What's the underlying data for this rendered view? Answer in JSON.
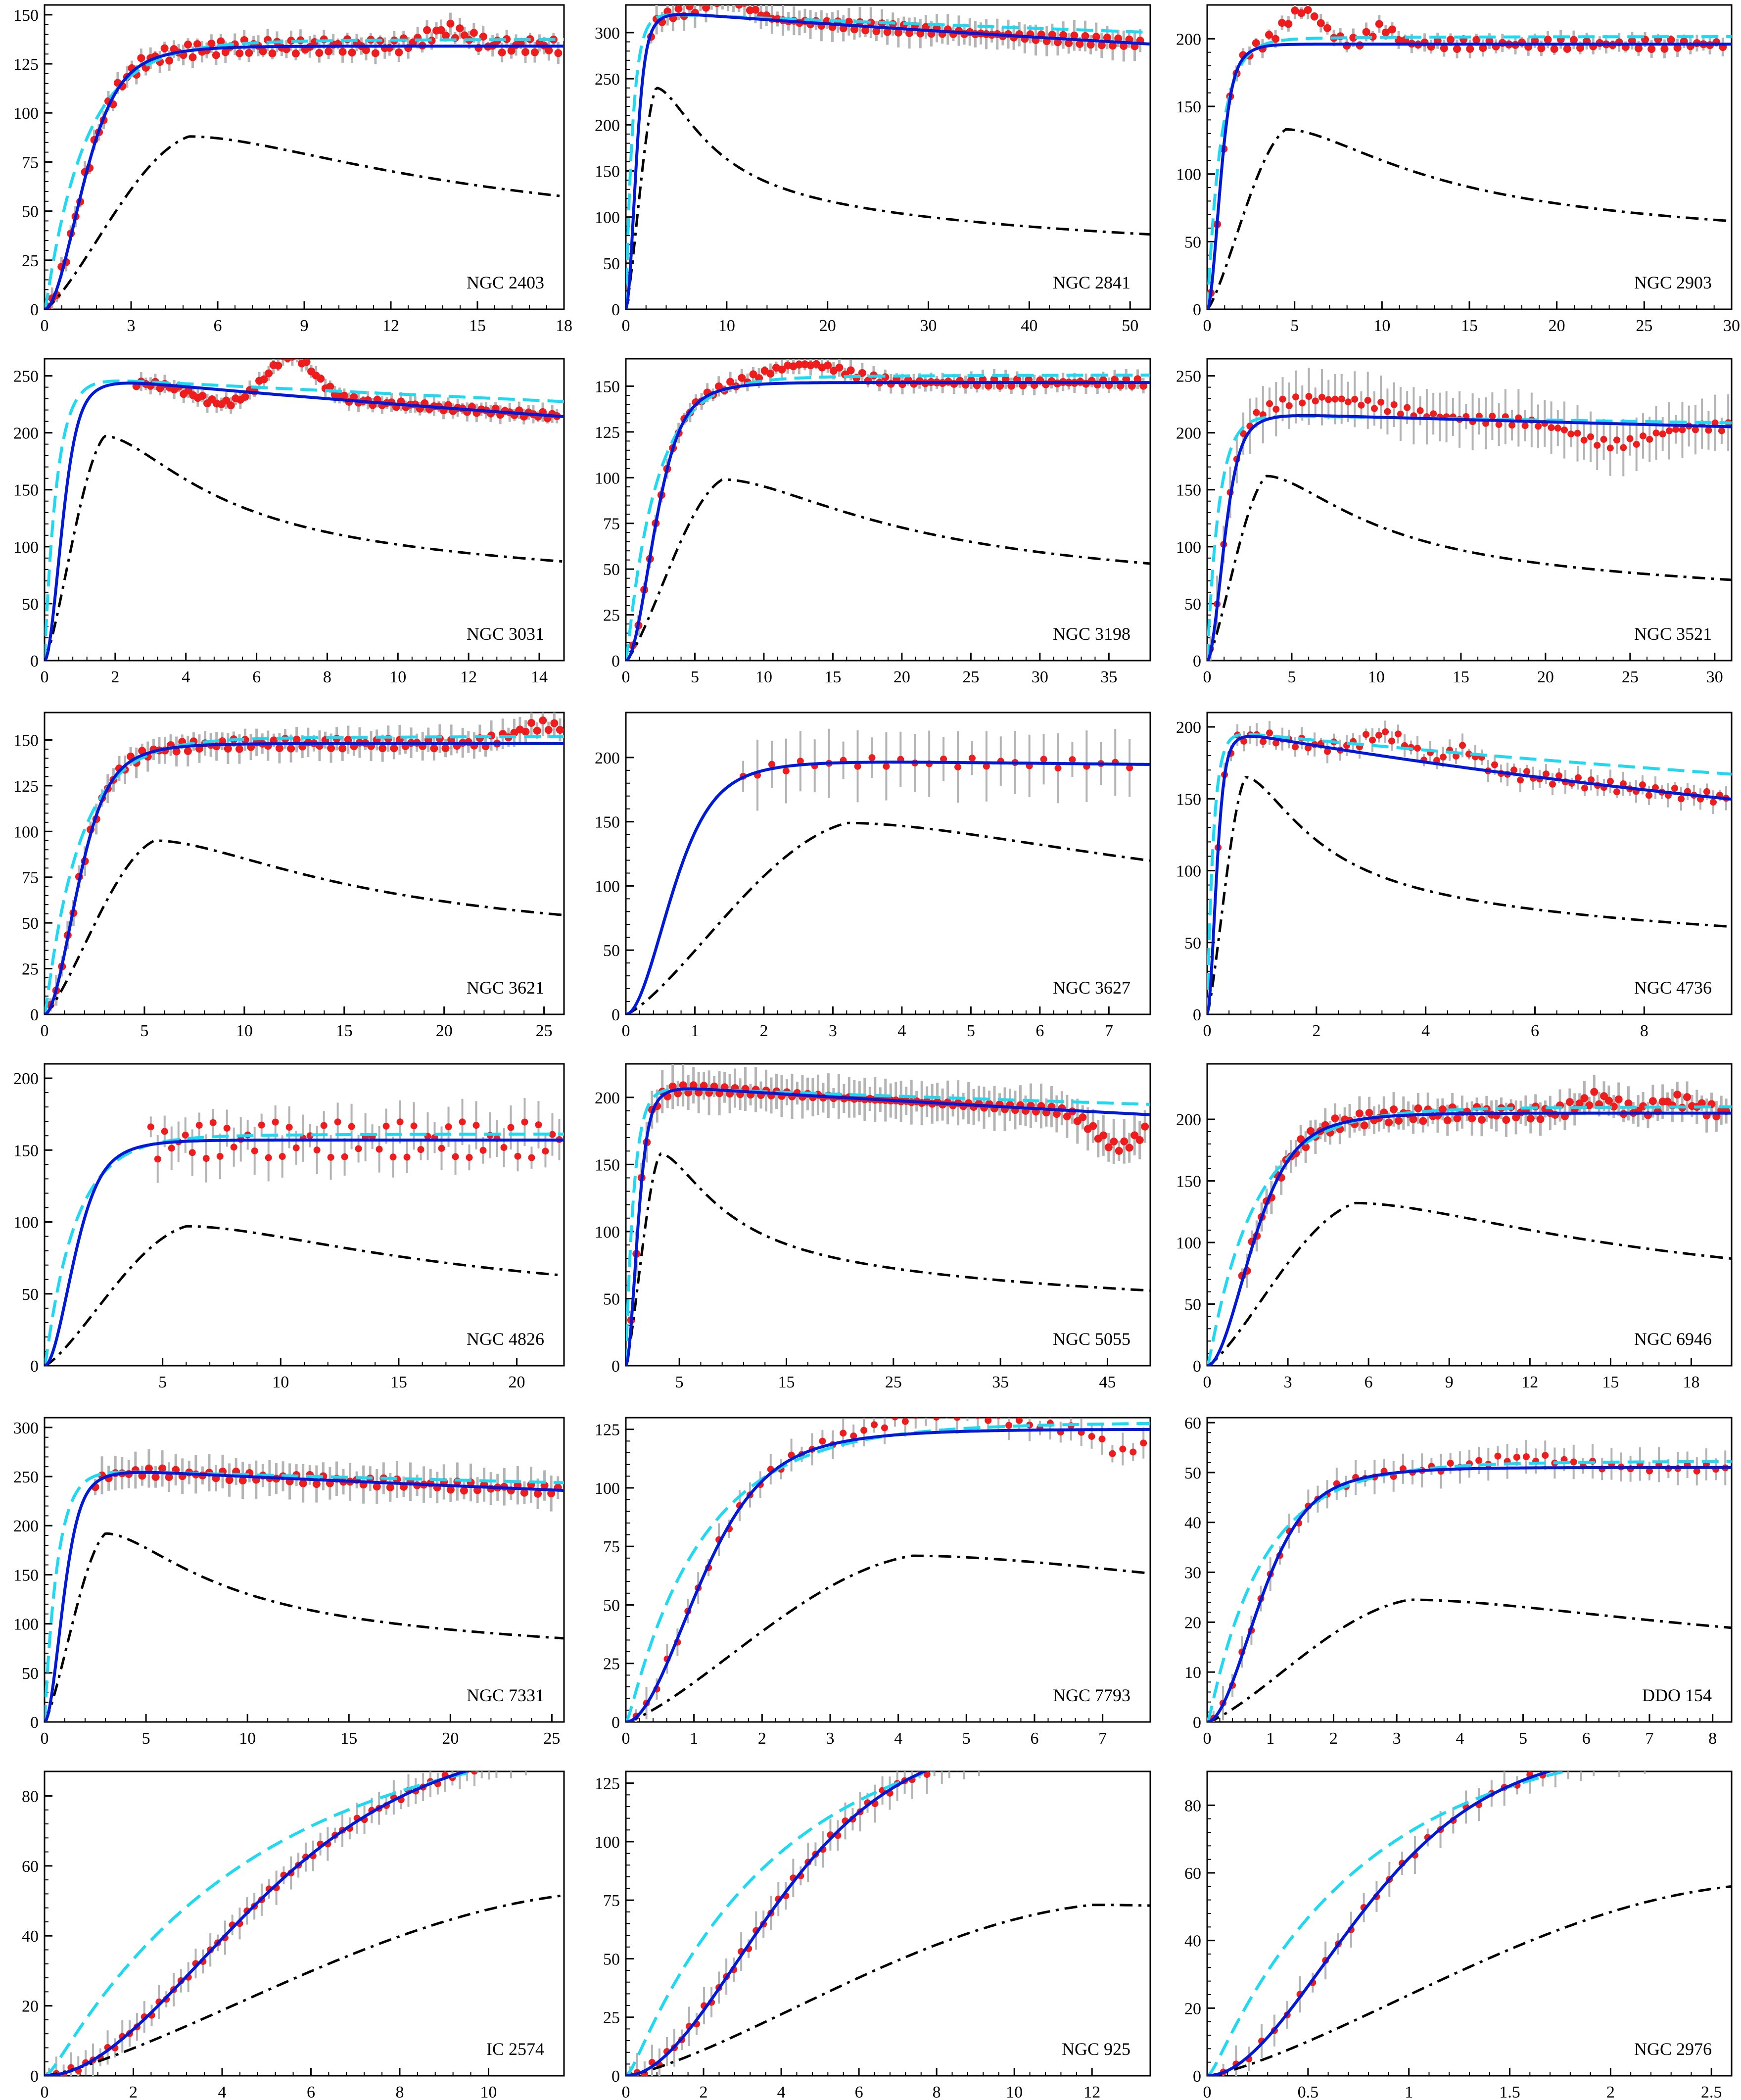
{
  "figure": {
    "description_free": true,
    "colors": {
      "data_points": "#ee1c1c",
      "error_bars": "#b4b4b4",
      "fit_solid": "#0018d8",
      "fit_dashed": "#1fd8f2",
      "baryonic_dashdot": "#000000",
      "axes": "#000000"
    }
  },
  "chart_data": [
    {
      "type": "line",
      "title": "NGC 2403",
      "xlim": [
        0,
        18
      ],
      "ylim": [
        0,
        155
      ],
      "xticks": [
        0,
        3,
        6,
        9,
        12,
        15,
        18
      ],
      "yticks": [
        0,
        25,
        50,
        75,
        100,
        125,
        150
      ],
      "vmax": 134,
      "rs": 1.6,
      "vpk": 88,
      "rpk": 5,
      "fit2": "pl",
      "noise": 4,
      "err": 4,
      "n": 110,
      "rmin": 0.1,
      "rmax": 17.8,
      "bump": [
        [
          14,
          8,
          1
        ]
      ],
      "dense": true
    },
    {
      "type": "line",
      "title": "NGC 2841",
      "xlim": [
        0,
        52
      ],
      "ylim": [
        0,
        330
      ],
      "xticks": [
        0,
        10,
        20,
        30,
        40,
        50
      ],
      "yticks": [
        0,
        50,
        100,
        150,
        200,
        250,
        300
      ],
      "vmax": 325,
      "rs": 1.2,
      "decl": 0.0025,
      "vpk": 240,
      "rpk": 3,
      "fit2": "flat",
      "noise": 5,
      "err": 12,
      "n": 90,
      "rmin": 2.5,
      "rmax": 51,
      "bump": [
        [
          10,
          20,
          3
        ]
      ],
      "dense": true
    },
    {
      "type": "line",
      "title": "NGC 2903",
      "xlim": [
        0,
        30
      ],
      "ylim": [
        0,
        225
      ],
      "xticks": [
        0,
        5,
        10,
        15,
        20,
        25,
        30
      ],
      "yticks": [
        0,
        50,
        100,
        150,
        200
      ],
      "vmax": 196,
      "rs": 0.9,
      "vpk": 133,
      "rpk": 4.5,
      "fit2": "pl",
      "noise": 4,
      "err": 5,
      "n": 80,
      "rmin": 0.2,
      "rmax": 29.5,
      "bump": [
        [
          5.5,
          25,
          1.5
        ],
        [
          10,
          12,
          1
        ]
      ],
      "dense": true
    },
    {
      "type": "line",
      "title": "NGC 3031",
      "xlim": [
        0,
        14.7
      ],
      "ylim": [
        0,
        265
      ],
      "xticks": [
        0,
        2,
        4,
        6,
        8,
        10,
        12,
        14
      ],
      "yticks": [
        0,
        50,
        100,
        150,
        200,
        250
      ],
      "vmax": 252,
      "rs": 0.6,
      "decl": 0.012,
      "vpk": 197,
      "rpk": 1.7,
      "fit2": "flat",
      "noise": 3,
      "err": 6,
      "n": 90,
      "rmin": 2.6,
      "rmax": 14.5,
      "bump": [
        [
          7,
          35,
          0.9
        ],
        [
          5,
          -12,
          1
        ]
      ],
      "dense": true
    },
    {
      "type": "line",
      "title": "NGC 3198",
      "xlim": [
        0,
        38
      ],
      "ylim": [
        0,
        165
      ],
      "xticks": [
        0,
        5,
        10,
        15,
        20,
        25,
        30,
        35
      ],
      "yticks": [
        0,
        25,
        50,
        75,
        100,
        125,
        150
      ],
      "vmax": 152,
      "rs": 2.5,
      "vpk": 99,
      "rpk": 7,
      "fit2": "pl",
      "noise": 2,
      "err": 4,
      "n": 90,
      "rmin": 0.5,
      "rmax": 37.5,
      "bump": [
        [
          13,
          10,
          4
        ]
      ],
      "dense": true
    },
    {
      "type": "line",
      "title": "NGC 3521",
      "xlim": [
        0,
        31
      ],
      "ylim": [
        0,
        265
      ],
      "xticks": [
        0,
        5,
        10,
        15,
        20,
        25,
        30
      ],
      "yticks": [
        0,
        50,
        100,
        150,
        200,
        250
      ],
      "vmax": 218,
      "rs": 1.2,
      "decl": 0.002,
      "vpk": 162,
      "rpk": 3.5,
      "fit2": "flat",
      "noise": 4,
      "err": 18,
      "n": 80,
      "rmin": 0.2,
      "rmax": 30.8,
      "bump": [
        [
          7,
          15,
          5
        ],
        [
          24,
          -18,
          3
        ]
      ],
      "dense": false
    },
    {
      "type": "line",
      "title": "NGC 3621",
      "xlim": [
        0,
        26
      ],
      "ylim": [
        0,
        165
      ],
      "xticks": [
        0,
        5,
        10,
        15,
        20,
        25
      ],
      "yticks": [
        0,
        25,
        50,
        75,
        100,
        125,
        150
      ],
      "vmax": 148,
      "rs": 2.0,
      "vpk": 95,
      "rpk": 5.5,
      "fit2": "pl",
      "noise": 3,
      "err": 6,
      "n": 90,
      "rmin": 0.3,
      "rmax": 25.8,
      "bump": [
        [
          25,
          10,
          2
        ]
      ],
      "dense": true
    },
    {
      "type": "line",
      "title": "NGC 3627",
      "xlim": [
        0,
        7.6
      ],
      "ylim": [
        0,
        235
      ],
      "xticks": [
        0,
        1,
        2,
        3,
        4,
        5,
        6,
        7
      ],
      "yticks": [
        0,
        50,
        100,
        150,
        200
      ],
      "vmax": 199,
      "rs": 0.8,
      "decl": 0.003,
      "vpk": 149,
      "rpk": 3.2,
      "fit2": "same",
      "noise": 4,
      "err": 20,
      "n": 28,
      "rmin": 1.7,
      "rmax": 7.3,
      "bump": [],
      "dense": false
    },
    {
      "type": "line",
      "title": "NGC 4736",
      "xlim": [
        0,
        9.6
      ],
      "ylim": [
        0,
        210
      ],
      "xticks": [
        0,
        2,
        4,
        6,
        8
      ],
      "yticks": [
        0,
        50,
        100,
        150,
        200
      ],
      "vmax": 200,
      "rs": 0.2,
      "decl": 0.035,
      "vpk": 165,
      "rpk": 0.7,
      "fit2": "flat",
      "noise": 4,
      "err": 6,
      "n": 80,
      "rmin": 0.2,
      "rmax": 9.5,
      "bump": [
        [
          3.3,
          15,
          0.6
        ],
        [
          4.7,
          12,
          0.4
        ]
      ],
      "dense": false
    },
    {
      "type": "line",
      "title": "NGC 4826",
      "xlim": [
        0,
        22
      ],
      "ylim": [
        0,
        210
      ],
      "xticks": [
        5,
        10,
        15,
        20
      ],
      "yticks": [
        0,
        50,
        100,
        150,
        200
      ],
      "vmax": 157,
      "rs": 1.5,
      "vpk": 97,
      "rpk": 6,
      "fit2": "pl",
      "noise": 14,
      "err": 12,
      "n": 60,
      "rmin": 4.5,
      "rmax": 21.8,
      "bump": [],
      "dense": false
    },
    {
      "type": "line",
      "title": "NGC 5055",
      "xlim": [
        0,
        49
      ],
      "ylim": [
        0,
        225
      ],
      "xticks": [
        5,
        15,
        25,
        35,
        45
      ],
      "yticks": [
        0,
        50,
        100,
        150,
        200
      ],
      "vmax": 210,
      "rs": 1.3,
      "decl": 0.0025,
      "vpk": 158,
      "rpk": 3.2,
      "fit2": "flat",
      "noise": 5,
      "err": 12,
      "n": 100,
      "rmin": 0.5,
      "rmax": 48.5,
      "bump": [
        [
          46,
          -25,
          3
        ]
      ],
      "dense": true
    },
    {
      "type": "line",
      "title": "NGC 6946",
      "xlim": [
        0,
        19.5
      ],
      "ylim": [
        0,
        245
      ],
      "xticks": [
        0,
        3,
        6,
        9,
        12,
        15,
        18
      ],
      "yticks": [
        0,
        50,
        100,
        150,
        200
      ],
      "vmax": 205,
      "rs": 2.0,
      "vpk": 132,
      "rpk": 5.5,
      "fit2": "pl",
      "noise": 6,
      "err": 10,
      "n": 100,
      "rmin": 1.3,
      "rmax": 19.3,
      "bump": [
        [
          14.5,
          12,
          1
        ],
        [
          17.5,
          10,
          1
        ]
      ],
      "dense": true
    },
    {
      "type": "line",
      "title": "NGC 7331",
      "xlim": [
        0,
        25.6
      ],
      "ylim": [
        0,
        310
      ],
      "xticks": [
        0,
        5,
        10,
        15,
        20,
        25
      ],
      "yticks": [
        0,
        50,
        100,
        150,
        200,
        250,
        300
      ],
      "vmax": 260,
      "rs": 1.1,
      "decl": 0.004,
      "vpk": 192,
      "rpk": 3,
      "fit2": "flat",
      "noise": 5,
      "err": 14,
      "n": 70,
      "rmin": 2.5,
      "rmax": 25.3,
      "bump": [],
      "dense": true
    },
    {
      "type": "line",
      "title": "NGC 7793",
      "xlim": [
        0,
        7.7
      ],
      "ylim": [
        0,
        130
      ],
      "xticks": [
        0,
        1,
        2,
        3,
        4,
        5,
        6,
        7
      ],
      "yticks": [
        0,
        25,
        50,
        75,
        100,
        125
      ],
      "vmax": 125,
      "rs": 1.3,
      "vpk": 71,
      "rpk": 4.2,
      "fit2": "pl",
      "noise": 2,
      "err": 5,
      "n": 50,
      "rmin": 0.15,
      "rmax": 7.6,
      "bump": [
        [
          4.6,
          8,
          1.2
        ],
        [
          7.3,
          -10,
          0.4
        ]
      ],
      "dense": false
    },
    {
      "type": "line",
      "title": "DDO 154",
      "xlim": [
        0,
        8.3
      ],
      "ylim": [
        0,
        61
      ],
      "xticks": [
        0,
        1,
        2,
        3,
        4,
        5,
        6,
        7,
        8
      ],
      "yticks": [
        0,
        10,
        20,
        30,
        40,
        50,
        60
      ],
      "vmax": 51,
      "rs": 1.0,
      "vpk": 24.5,
      "rpk": 3.2,
      "fit2": "pl",
      "noise": 0.8,
      "err": 2.5,
      "n": 55,
      "rmin": 0.1,
      "rmax": 8.2,
      "bump": [
        [
          5,
          2,
          1
        ]
      ],
      "dense": false
    },
    {
      "type": "line",
      "title": "IC 2574",
      "xlim": [
        0,
        11.7
      ],
      "ylim": [
        0,
        87
      ],
      "xticks": [
        0,
        2,
        4,
        6,
        8,
        10
      ],
      "yticks": [
        0,
        20,
        40,
        60,
        80
      ],
      "vmax": 100,
      "rs": 5.5,
      "vpk": 52,
      "rpk": 12,
      "fit2": "pl",
      "noise": 1,
      "err": 3.5,
      "n": 70,
      "rmin": 0.1,
      "rmax": 11.5,
      "bump": [],
      "dense": false
    },
    {
      "type": "line",
      "title": "NGC 925",
      "xlim": [
        0,
        13.5
      ],
      "ylim": [
        0,
        130
      ],
      "xticks": [
        0,
        2,
        4,
        6,
        8,
        10,
        12
      ],
      "yticks": [
        0,
        25,
        50,
        75,
        100,
        125
      ],
      "vmax": 150,
      "rs": 4.5,
      "vpk": 73,
      "rpk": 12,
      "fit2": "pl",
      "noise": 2,
      "err": 6,
      "n": 70,
      "rmin": 0.1,
      "rmax": 13.3,
      "bump": [],
      "dense": false
    },
    {
      "type": "line",
      "title": "NGC 2976",
      "xlim": [
        0,
        2.6
      ],
      "ylim": [
        0,
        90
      ],
      "xticks": [
        0,
        0.5,
        1,
        1.5,
        2,
        2.5
      ],
      "yticks": [
        0,
        20,
        40,
        60,
        80
      ],
      "vmax": 100,
      "rs": 0.9,
      "vpk": 56,
      "rpk": 2.6,
      "fit2": "pl",
      "noise": 1,
      "err": 4,
      "n": 40,
      "rmin": 0.08,
      "rmax": 2.55,
      "bump": [],
      "dense": false
    }
  ]
}
